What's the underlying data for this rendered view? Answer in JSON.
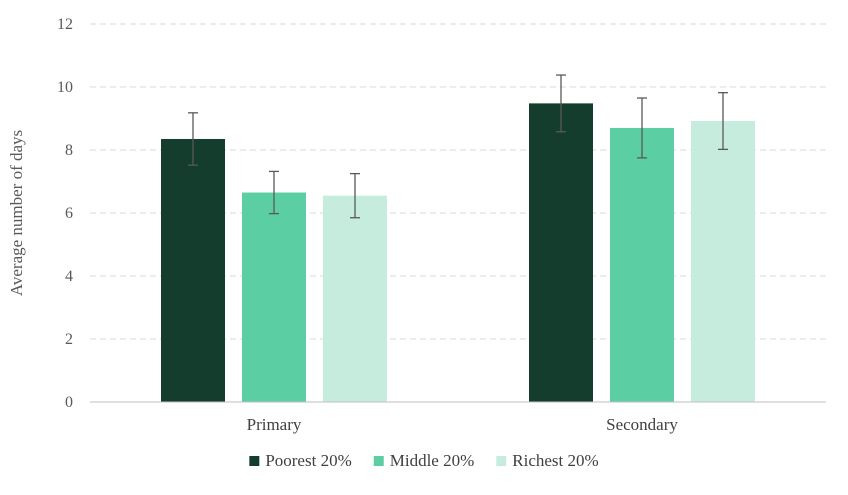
{
  "chart_data": {
    "type": "bar",
    "title": "",
    "xlabel": "",
    "ylabel": "Average number of days",
    "ylim": [
      0,
      12
    ],
    "yticks": [
      "0",
      "2",
      "4",
      "6",
      "8",
      "10",
      "12"
    ],
    "grid": "horizontal dashed",
    "legend_position": "bottom",
    "categories": [
      "Primary",
      "Secondary"
    ],
    "series": [
      {
        "name": "Poorest 20%",
        "color": "#143d2e",
        "values": [
          8.35,
          9.48
        ],
        "error": [
          0.83,
          0.9
        ]
      },
      {
        "name": "Middle 20%",
        "color": "#5bcfa3",
        "values": [
          6.65,
          8.7
        ],
        "error": [
          0.67,
          0.95
        ]
      },
      {
        "name": "Richest 20%",
        "color": "#c6ecde",
        "values": [
          6.55,
          8.92
        ],
        "error": [
          0.7,
          0.9
        ]
      }
    ]
  }
}
